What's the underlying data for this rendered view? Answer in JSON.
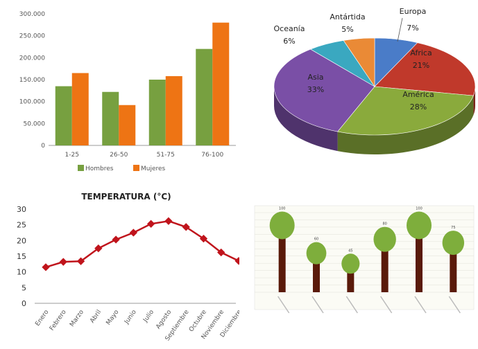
{
  "chart_data": [
    {
      "type": "bar",
      "categories": [
        "1-25",
        "26-50",
        "51-75",
        "76-100"
      ],
      "series": [
        {
          "name": "Hombres",
          "values": [
            135000,
            122000,
            150000,
            220000
          ],
          "color": "#77a040"
        },
        {
          "name": "Mujeres",
          "values": [
            165000,
            92000,
            158000,
            280000
          ],
          "color": "#ee7414"
        }
      ],
      "yticks": [
        "0",
        "50.000",
        "100.000",
        "150.000",
        "200.000",
        "250.000",
        "300.000"
      ],
      "ylim": [
        0,
        300000
      ],
      "legend": "bottom",
      "grid": false
    },
    {
      "type": "pie",
      "style": "3d",
      "slices": [
        {
          "label": "Europa",
          "pct_text": "7%",
          "value": 7,
          "color": "#4a7cc8"
        },
        {
          "label": "Africa",
          "pct_text": "21%",
          "value": 21,
          "color": "#c0392b"
        },
        {
          "label": "América",
          "pct_text": "28%",
          "value": 28,
          "color": "#8aaa3c"
        },
        {
          "label": "Asia",
          "pct_text": "33%",
          "value": 33,
          "color": "#7a4fa6"
        },
        {
          "label": "Oceanía",
          "pct_text": "6%",
          "value": 6,
          "color": "#3aa8c0"
        },
        {
          "label": "Antártida",
          "pct_text": "5%",
          "value": 5,
          "color": "#ea8a36"
        }
      ]
    },
    {
      "type": "line",
      "title": "TEMPERATURA (°C)",
      "categories": [
        "Enero",
        "Febrero",
        "Marzo",
        "Abril",
        "Mayo",
        "Junio",
        "Julio",
        "Agosto",
        "Septiembre",
        "Octubre",
        "Noviembre",
        "Diciembre"
      ],
      "values": [
        11.5,
        13.2,
        13.4,
        17.5,
        20.3,
        22.5,
        25.3,
        26.2,
        24.3,
        20.6,
        16.2,
        13.5
      ],
      "yticks": [
        "0",
        "5",
        "10",
        "15",
        "20",
        "25",
        "30"
      ],
      "ylim": [
        0,
        30
      ],
      "color": "#c0141c",
      "grid": false
    },
    {
      "type": "bar",
      "style": "pictogram-trees",
      "values": [
        100,
        60,
        45,
        80,
        100,
        75
      ],
      "value_labels": [
        "100",
        "60",
        "45",
        "80",
        "100",
        "75"
      ],
      "ylim": [
        0,
        110
      ],
      "trunk_color": "#5a1a0a",
      "crown_color": "#7eae3c",
      "grid": true
    }
  ]
}
